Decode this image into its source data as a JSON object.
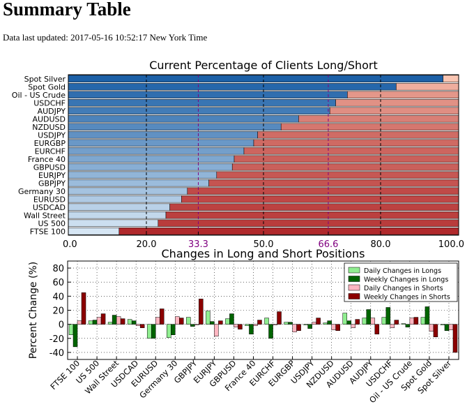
{
  "page": {
    "title": "Summary Table",
    "updated_label": "Data last updated:",
    "updated_value": "2017-05-16 10:52:17 New York Time"
  },
  "chart_data": [
    {
      "type": "bar",
      "orientation": "horizontal",
      "stacked": true,
      "title": "Current Percentage of Clients Long/Short",
      "xlim": [
        0,
        100
      ],
      "xticks": [
        "0.0",
        "20.0",
        "33.3",
        "50.0",
        "66.6",
        "80.0",
        "100.0"
      ],
      "tick_values": [
        0,
        20,
        33.3,
        50,
        66.6,
        80,
        100
      ],
      "highlight_ticks": [
        33.3,
        66.6
      ],
      "highlight_color": "#800080",
      "categories": [
        "Spot Silver",
        "Spot Gold",
        "Oil - US Crude",
        "USDCHF",
        "AUDJPY",
        "AUDUSD",
        "NZDUSD",
        "USDJPY",
        "EURGBP",
        "EURCHF",
        "France 40",
        "GBPUSD",
        "EURJPY",
        "GBPJPY",
        "Germany 30",
        "EURUSD",
        "USDCAD",
        "Wall Street",
        "US 500",
        "FTSE 100"
      ],
      "series": [
        {
          "values": [
            96,
            84,
            71.5,
            68.5,
            67,
            59,
            54.5,
            48.5,
            47.5,
            45,
            42.5,
            42,
            38,
            36,
            30.5,
            29,
            26,
            25,
            23,
            13
          ]
        },
        {
          "values": [
            4,
            16,
            28.5,
            31.5,
            33,
            41,
            45.5,
            51.5,
            52.5,
            55,
            57.5,
            58,
            62,
            64,
            69.5,
            71,
            74,
            75,
            77,
            87
          ]
        }
      ],
      "grid": true,
      "legend": "none"
    },
    {
      "type": "bar",
      "title": "Changes in Long and Short Positions",
      "ylabel": "Percent Change (%)",
      "ylim": [
        -50,
        90
      ],
      "yticks": [
        -40,
        -20,
        0,
        20,
        40,
        60,
        80
      ],
      "categories": [
        "FTSE 100",
        "US 500",
        "Wall Street",
        "USDCAD",
        "EURUSD",
        "Germany 30",
        "GBPJPY",
        "EURJPY",
        "GBPUSD",
        "France 40",
        "EURCHF",
        "EURGBP",
        "USDJPY",
        "NZDUSD",
        "AUDUSD",
        "AUDJPY",
        "USDCHF",
        "Oil - US Crude",
        "Spot Gold",
        "Spot Silver"
      ],
      "series": [
        {
          "name": "Daily Changes in Longs",
          "color": "#90ee90",
          "values": [
            -15,
            5,
            3,
            7,
            -20,
            -19,
            10,
            19,
            8,
            -2,
            9,
            3,
            -1,
            2,
            16,
            9,
            10,
            1,
            10,
            -1
          ]
        },
        {
          "name": "Weekly Changes in Longs",
          "color": "#006400",
          "values": [
            -32,
            6,
            13,
            5,
            -20,
            -15,
            -3,
            4,
            15,
            -14,
            -20,
            3,
            -6,
            5,
            5,
            21,
            24,
            -4,
            25,
            -9
          ]
        },
        {
          "name": "Daily Changes in Shorts",
          "color": "#ffb6c1",
          "values": [
            5,
            10,
            11,
            -2,
            10,
            11,
            -1,
            -17,
            -4,
            -2,
            -1,
            -11,
            3,
            -8,
            -5,
            9,
            -5,
            9,
            -10,
            -8
          ]
        },
        {
          "name": "Weekly Changes in Shorts",
          "color": "#8b0000",
          "values": [
            45,
            15,
            8,
            -5,
            22,
            9,
            36,
            5,
            -7,
            6,
            18,
            -9,
            9,
            -9,
            7,
            -14,
            6,
            10,
            -18,
            -40
          ]
        }
      ],
      "grid": true,
      "legend": "upper right"
    }
  ]
}
